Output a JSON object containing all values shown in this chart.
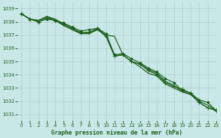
{
  "title": "Graphe pression niveau de la mer (hPa)",
  "background_color": "#c8e8e8",
  "plot_bg_color": "#c8e8e8",
  "grid_color": "#b0c8c8",
  "line_color": "#1a5e1a",
  "xlim": [
    -0.5,
    23
  ],
  "ylim": [
    1030.5,
    1039.5
  ],
  "yticks": [
    1031,
    1032,
    1033,
    1034,
    1035,
    1036,
    1037,
    1038,
    1039
  ],
  "xticks": [
    0,
    1,
    2,
    3,
    4,
    5,
    6,
    7,
    8,
    9,
    10,
    11,
    12,
    13,
    14,
    15,
    16,
    17,
    18,
    19,
    20,
    21,
    22,
    23
  ],
  "series": [
    [
      1038.6,
      1038.2,
      1038.0,
      1038.3,
      1038.1,
      1037.8,
      1037.5,
      1037.2,
      1037.2,
      1037.5,
      1036.9,
      1035.4,
      1035.5,
      1035.0,
      1034.8,
      1034.3,
      1034.0,
      1033.4,
      1033.1,
      1032.9,
      1032.6,
      1031.9,
      1031.5,
      1031.3
    ],
    [
      1038.6,
      1038.2,
      1038.0,
      1038.2,
      1038.1,
      1037.9,
      1037.6,
      1037.3,
      1037.4,
      1037.5,
      1037.1,
      1035.5,
      1035.6,
      1035.2,
      1034.9,
      1034.5,
      1034.2,
      1033.7,
      1033.4,
      1032.8,
      1032.6,
      1032.1,
      1031.9,
      1031.3
    ],
    [
      1038.6,
      1038.2,
      1038.1,
      1038.4,
      1038.2,
      1037.8,
      1037.5,
      1037.1,
      1037.1,
      1037.4,
      1036.9,
      1035.4,
      1035.5,
      1035.0,
      1034.8,
      1034.4,
      1034.1,
      1033.5,
      1033.2,
      1032.7,
      1032.5,
      1032.0,
      1031.7,
      1031.3
    ],
    [
      1038.6,
      1038.2,
      1038.1,
      1038.4,
      1038.1,
      1037.7,
      1037.4,
      1037.1,
      1037.2,
      1037.4,
      1037.0,
      1036.9,
      1035.5,
      1035.0,
      1034.6,
      1034.1,
      1033.9,
      1033.3,
      1033.0,
      1032.7,
      1032.5,
      1031.9,
      1031.5,
      1031.3
    ]
  ],
  "marker_series": [
    0,
    1,
    2
  ],
  "markers": [
    "+",
    "D",
    "^"
  ],
  "markersizes": [
    5,
    2.5,
    3
  ],
  "title_fontsize": 6,
  "tick_fontsize": 5,
  "tick_color": "#1a5e1a",
  "linewidth": 0.9
}
